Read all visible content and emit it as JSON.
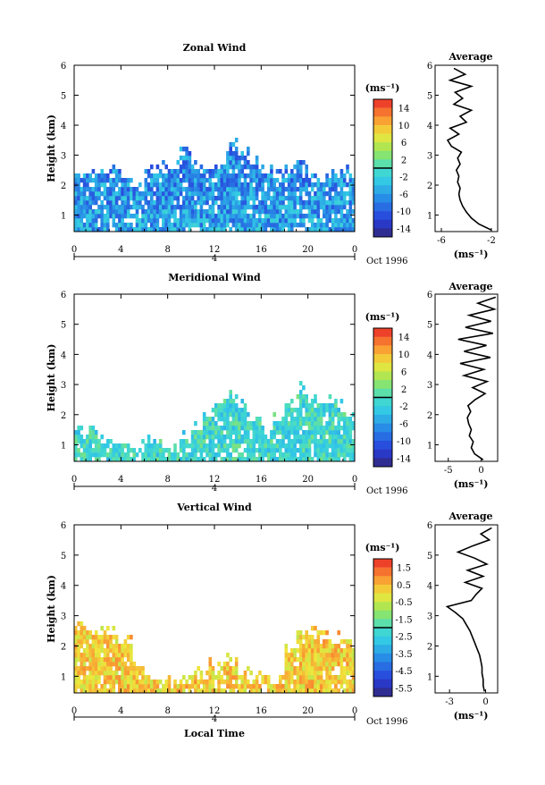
{
  "chart_data": [
    {
      "type": "heatmap",
      "title": "Zonal Wind",
      "ylabel": "Height (km)",
      "xticks": [
        "0",
        "4",
        "8",
        "12",
        "16",
        "20",
        "0"
      ],
      "yticks": [
        "1",
        "2",
        "3",
        "4",
        "5",
        "6"
      ],
      "xlim": [
        0,
        24
      ],
      "ylim": [
        0.45,
        6
      ],
      "date_day": "4",
      "date_label": "Oct 1996",
      "colorbar": {
        "unit": "(ms⁻¹)",
        "ticks": [
          "14",
          "10",
          "6",
          "2",
          "-2",
          "-6",
          "-10",
          "-14"
        ],
        "range": [
          -16,
          16
        ]
      },
      "data_top_km": [
        2.4,
        2.4,
        2.5,
        2.6,
        2.3,
        2.2,
        2.5,
        2.7,
        2.8,
        3.3,
        2.9,
        2.7,
        2.8,
        3.4,
        3.2,
        2.9,
        2.6,
        2.5,
        2.6,
        2.8,
        2.4,
        2.3,
        2.4,
        2.5
      ],
      "average_profile": {
        "title": "Average",
        "unit": "(ms⁻¹)",
        "xticks": [
          "-6",
          "-2"
        ],
        "xlim": [
          -6.5,
          -1.5
        ],
        "height_km": [
          0.5,
          0.7,
          0.9,
          1.1,
          1.3,
          1.5,
          1.7,
          1.9,
          2.1,
          2.3,
          2.5,
          2.7,
          2.9,
          3.1,
          3.3,
          3.5,
          3.7,
          3.9,
          4.1,
          4.3,
          4.5,
          4.7,
          4.9,
          5.1,
          5.3,
          5.5,
          5.7,
          5.9
        ],
        "value": [
          -2.0,
          -3.0,
          -3.6,
          -4.0,
          -4.3,
          -4.5,
          -4.6,
          -4.5,
          -4.7,
          -4.6,
          -4.8,
          -4.5,
          -4.7,
          -4.4,
          -5.2,
          -5.5,
          -4.6,
          -5.3,
          -4.0,
          -4.5,
          -3.6,
          -5.0,
          -4.3,
          -4.9,
          -3.6,
          -5.3,
          -4.1,
          -5.0
        ]
      }
    },
    {
      "type": "heatmap",
      "title": "Meridional Wind",
      "ylabel": "Height (km)",
      "xticks": [
        "0",
        "4",
        "8",
        "12",
        "16",
        "20",
        "0"
      ],
      "yticks": [
        "1",
        "2",
        "3",
        "4",
        "5",
        "6"
      ],
      "xlim": [
        0,
        24
      ],
      "ylim": [
        0.45,
        6
      ],
      "date_day": "4",
      "date_label": "Oct 1996",
      "colorbar": {
        "unit": "(ms⁻¹)",
        "ticks": [
          "14",
          "10",
          "6",
          "2",
          "-2",
          "-6",
          "-10",
          "-14"
        ],
        "range": [
          -16,
          16
        ]
      },
      "data_top_km": [
        1.6,
        1.5,
        1.3,
        1.2,
        1.1,
        1.0,
        1.2,
        1.1,
        1.0,
        1.3,
        1.7,
        2.2,
        2.5,
        2.7,
        2.4,
        2.0,
        1.6,
        1.9,
        2.4,
        2.9,
        2.6,
        2.5,
        2.4,
        2.2
      ],
      "average_profile": {
        "title": "Average",
        "unit": "(ms⁻¹)",
        "xticks": [
          "-5",
          "0"
        ],
        "xlim": [
          -7,
          2.5
        ],
        "height_km": [
          0.5,
          0.7,
          0.9,
          1.1,
          1.3,
          1.5,
          1.7,
          1.9,
          2.1,
          2.3,
          2.5,
          2.7,
          2.9,
          3.1,
          3.3,
          3.5,
          3.7,
          3.9,
          4.1,
          4.3,
          4.5,
          4.7,
          4.9,
          5.1,
          5.3,
          5.5,
          5.7,
          5.9
        ],
        "value": [
          0.3,
          -1.0,
          -1.5,
          -1.2,
          -1.8,
          -1.5,
          -1.9,
          -2.1,
          -1.6,
          -2.0,
          -0.9,
          0.6,
          -1.3,
          0.9,
          -2.6,
          0.4,
          -3.2,
          1.4,
          -2.6,
          0.8,
          -3.5,
          1.8,
          -2.4,
          1.5,
          -1.8,
          2.0,
          -0.5,
          2.2
        ]
      }
    },
    {
      "type": "heatmap",
      "title": "Vertical Wind",
      "ylabel": "Height (km)",
      "xlabel": "Local Time",
      "xticks": [
        "0",
        "4",
        "8",
        "12",
        "16",
        "20",
        "0"
      ],
      "yticks": [
        "1",
        "2",
        "3",
        "4",
        "5",
        "6"
      ],
      "xlim": [
        0,
        24
      ],
      "ylim": [
        0.45,
        6
      ],
      "date_day": "4",
      "date_label": "Oct 1996",
      "colorbar": {
        "unit": "(ms⁻¹)",
        "ticks": [
          "1.5",
          "0.5",
          "-0.5",
          "-1.5",
          "-2.5",
          "-3.5",
          "-4.5",
          "-5.5"
        ],
        "range": [
          -6,
          2
        ]
      },
      "data_top_km": [
        2.8,
        2.7,
        2.6,
        2.5,
        2.2,
        1.5,
        1.0,
        0.9,
        0.9,
        1.0,
        1.3,
        1.5,
        1.4,
        1.6,
        1.2,
        1.0,
        0.9,
        1.0,
        2.0,
        2.6,
        2.5,
        2.4,
        2.3,
        2.2
      ],
      "average_profile": {
        "title": "Average",
        "unit": "(ms⁻¹)",
        "xticks": [
          "-3",
          "0"
        ],
        "xlim": [
          -4.2,
          1.0
        ],
        "height_km": [
          0.5,
          0.7,
          0.9,
          1.1,
          1.3,
          1.5,
          1.7,
          1.9,
          2.1,
          2.3,
          2.5,
          2.7,
          2.9,
          3.1,
          3.3,
          3.5,
          3.7,
          3.9,
          4.1,
          4.3,
          4.5,
          4.7,
          4.9,
          5.1,
          5.3,
          5.5,
          5.7,
          5.9
        ],
        "value": [
          -0.1,
          -0.2,
          -0.2,
          -0.3,
          -0.3,
          -0.4,
          -0.5,
          -0.7,
          -0.9,
          -1.1,
          -1.3,
          -1.6,
          -1.9,
          -2.5,
          -3.2,
          -1.2,
          -0.8,
          -0.3,
          -1.7,
          -0.2,
          -1.5,
          0.1,
          -0.9,
          -2.3,
          -1.1,
          0.3,
          -0.4,
          0.5
        ]
      }
    }
  ]
}
